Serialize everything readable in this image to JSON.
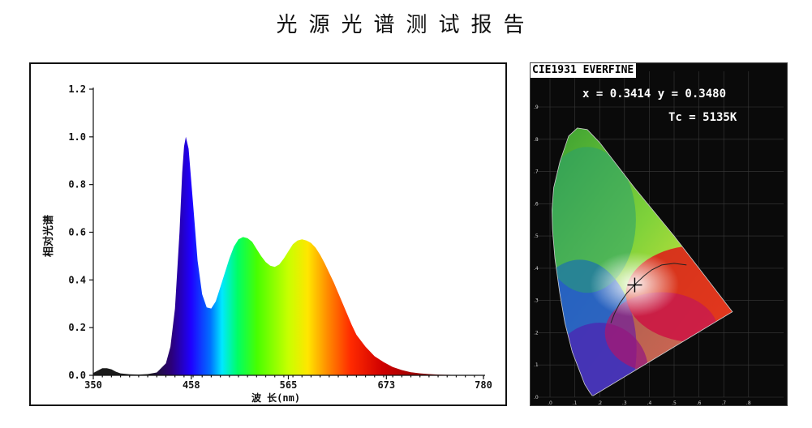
{
  "report": {
    "title": "光源光谱测试报告"
  },
  "chart_data": {
    "type": "area",
    "title": "",
    "xlabel": "波 长(nm)",
    "ylabel": "相对光谱",
    "xlim": [
      350,
      780
    ],
    "ylim": [
      0,
      1.2
    ],
    "x_ticks": [
      "350",
      "458",
      "565",
      "673",
      "780"
    ],
    "y_ticks": [
      "0.0",
      "0.2",
      "0.4",
      "0.6",
      "0.8",
      "1.0",
      "1.2"
    ],
    "series": [
      {
        "x": [
          350,
          355,
          360,
          365,
          370,
          375,
          380,
          390,
          400,
          410,
          420,
          430,
          435,
          440,
          445,
          448,
          450,
          452,
          455,
          460,
          465,
          470,
          475,
          480,
          485,
          490,
          495,
          500,
          505,
          510,
          515,
          520,
          525,
          530,
          535,
          540,
          545,
          550,
          555,
          560,
          565,
          570,
          575,
          580,
          585,
          590,
          595,
          600,
          605,
          610,
          615,
          620,
          625,
          630,
          635,
          640,
          650,
          660,
          670,
          680,
          690,
          700,
          710,
          720,
          730,
          740,
          750,
          760,
          770,
          780
        ],
        "values": [
          0.01,
          0.02,
          0.03,
          0.03,
          0.025,
          0.015,
          0.008,
          0.004,
          0.003,
          0.005,
          0.012,
          0.05,
          0.12,
          0.28,
          0.6,
          0.85,
          0.96,
          1.0,
          0.95,
          0.72,
          0.48,
          0.34,
          0.285,
          0.28,
          0.31,
          0.37,
          0.43,
          0.49,
          0.54,
          0.57,
          0.58,
          0.575,
          0.56,
          0.53,
          0.5,
          0.475,
          0.46,
          0.455,
          0.465,
          0.49,
          0.52,
          0.55,
          0.565,
          0.57,
          0.565,
          0.555,
          0.535,
          0.505,
          0.47,
          0.43,
          0.39,
          0.345,
          0.3,
          0.255,
          0.21,
          0.17,
          0.12,
          0.08,
          0.055,
          0.035,
          0.022,
          0.013,
          0.008,
          0.005,
          0.003,
          0.002,
          0.0015,
          0.001,
          0.0005,
          0.0003
        ]
      }
    ],
    "grid": false,
    "legend": "none"
  },
  "cie": {
    "header": "CIE1931 EVERFINE",
    "coords": "x = 0.3414 y = 0.3480",
    "cct": "Tc = 5135K",
    "chromaticity": {
      "x": 0.3414,
      "y": 0.348
    },
    "x_ticks": [
      ".0",
      ".1",
      ".2",
      ".3",
      ".4",
      ".5",
      ".6",
      ".7",
      ".8"
    ],
    "y_ticks": [
      ".0",
      ".1",
      ".2",
      ".3",
      ".4",
      ".5",
      ".6",
      ".7",
      ".8",
      ".9"
    ]
  }
}
